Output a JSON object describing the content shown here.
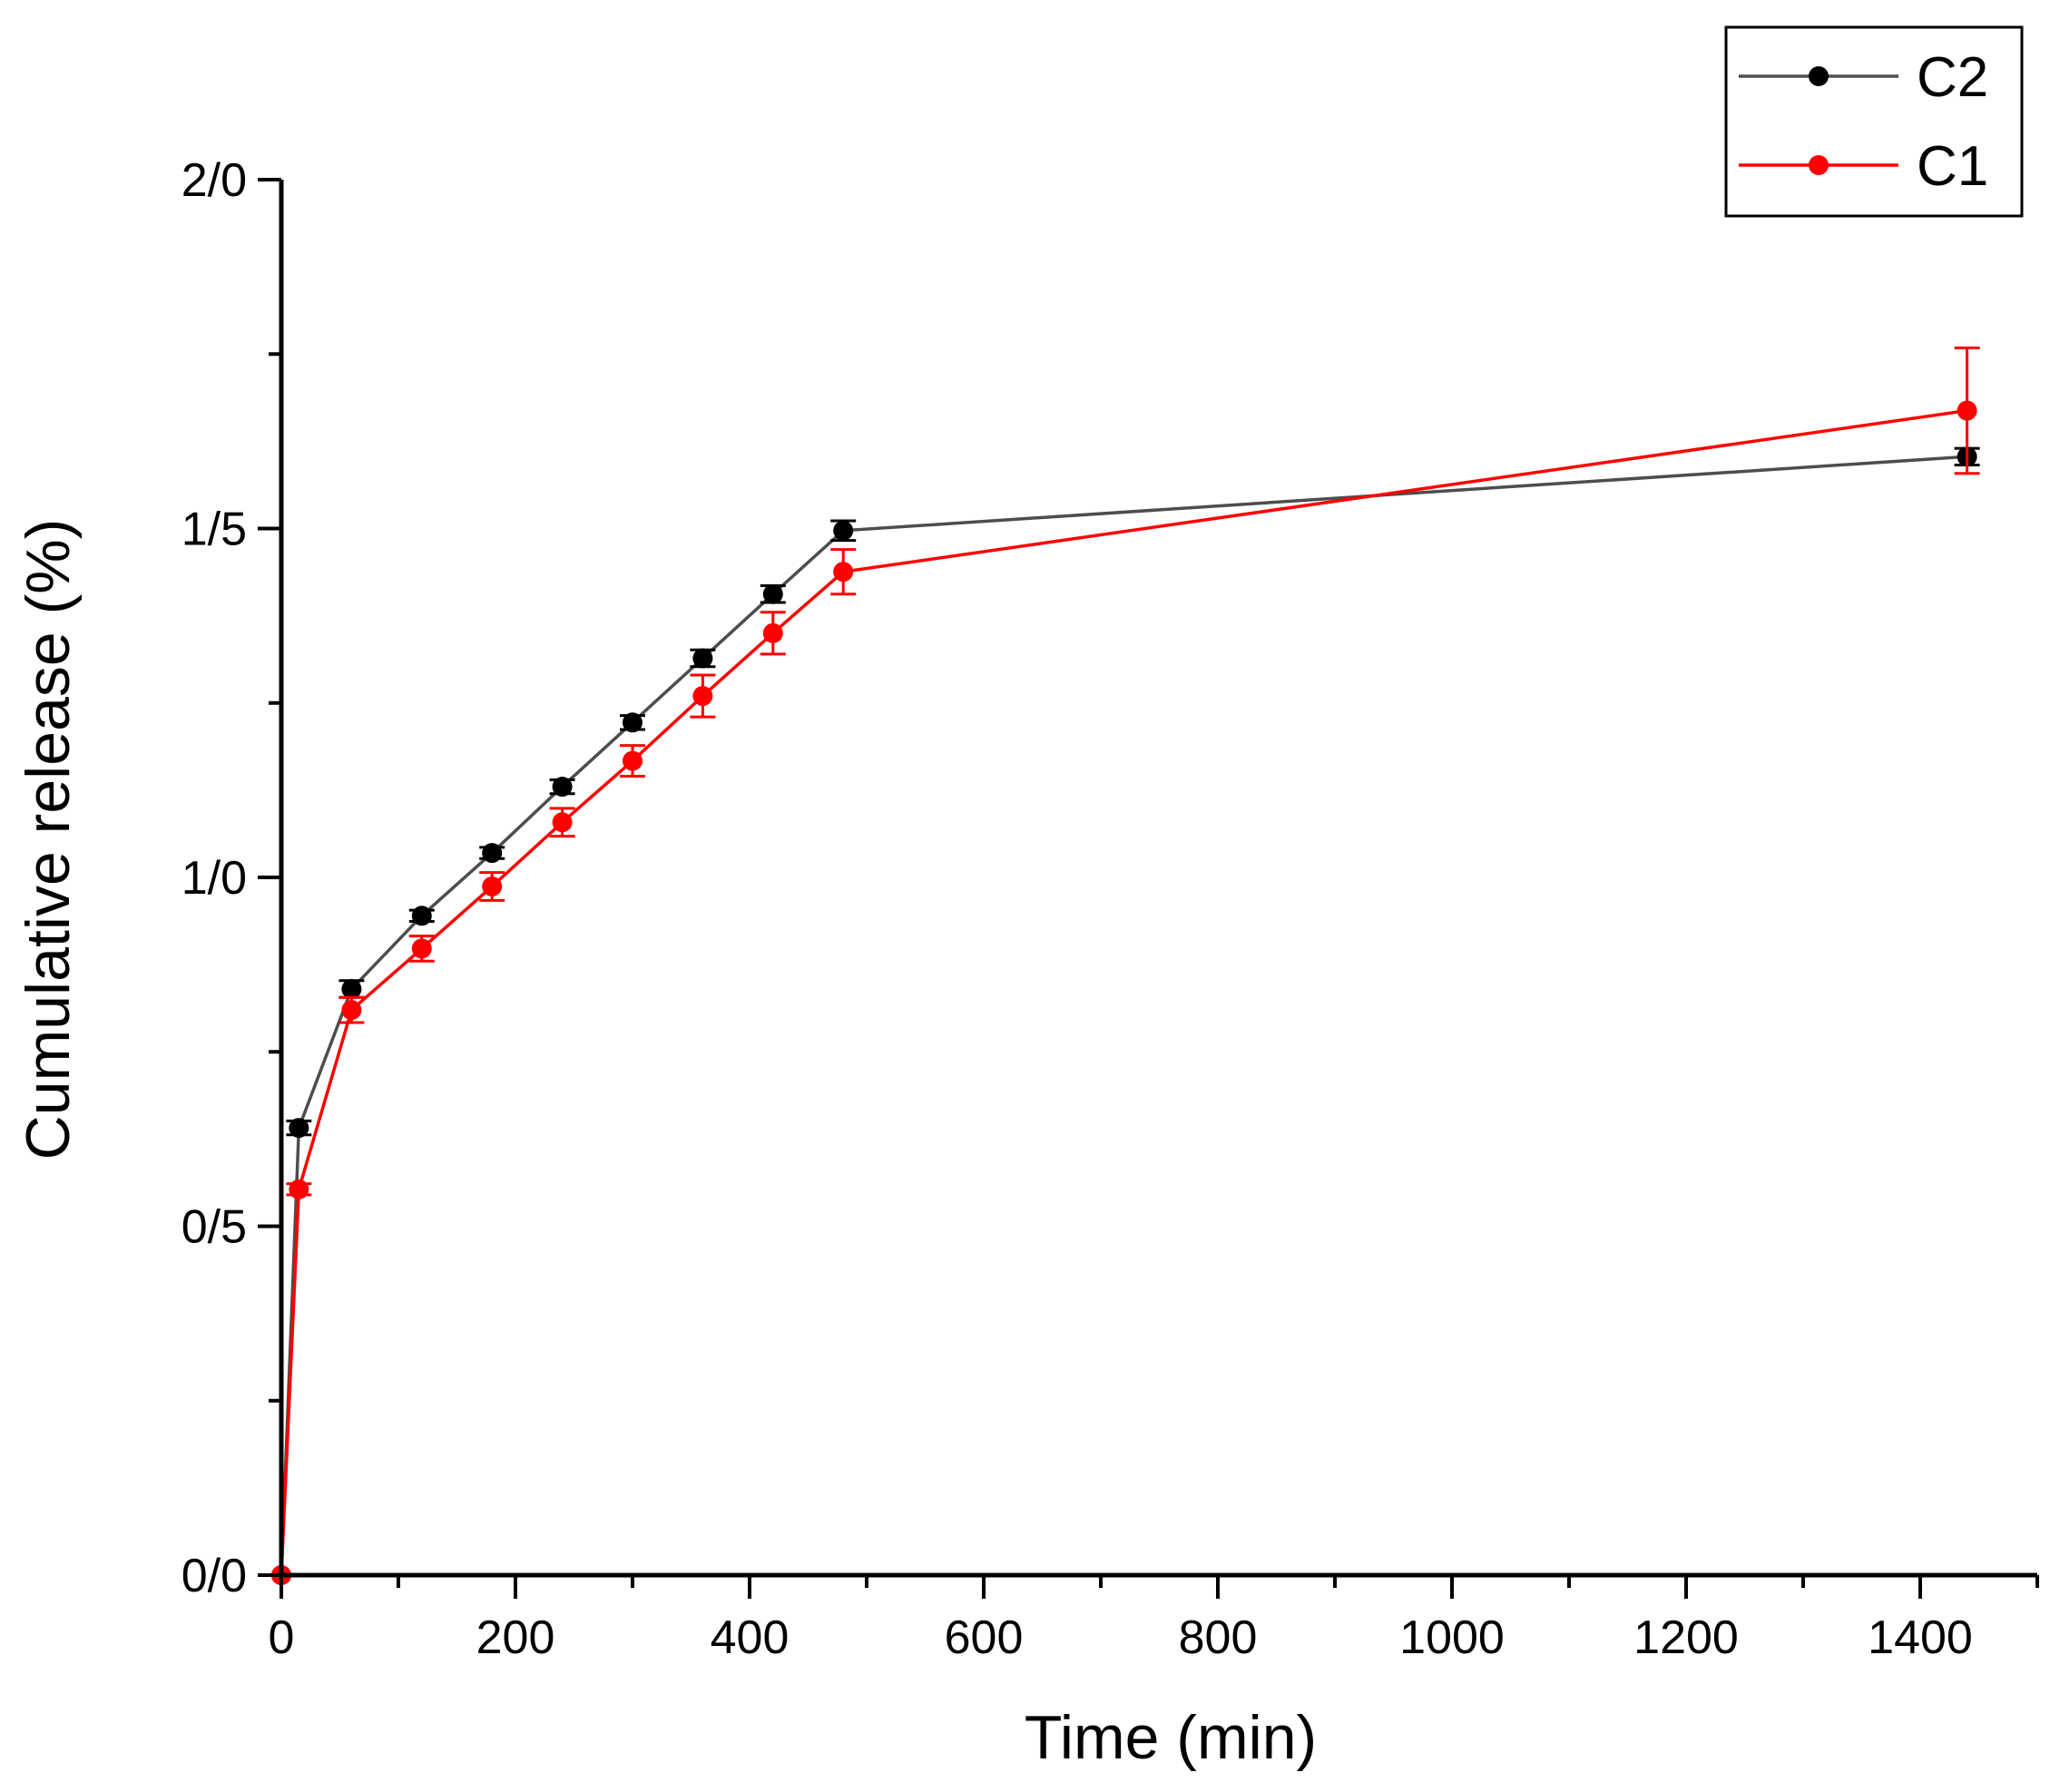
{
  "chart_data": {
    "type": "line",
    "title": "",
    "xlabel": "Time (min)",
    "ylabel": "Cumulative release (%)",
    "xlim": [
      0,
      1500
    ],
    "ylim": [
      0,
      2.0
    ],
    "x_ticks": [
      0,
      200,
      400,
      600,
      800,
      1000,
      1200,
      1400
    ],
    "x_tick_labels": [
      "0",
      "200",
      "400",
      "600",
      "800",
      "1000",
      "1200",
      "1400"
    ],
    "y_ticks": [
      0,
      0.5,
      1.0,
      1.5,
      2.0
    ],
    "y_tick_labels": [
      "0/0",
      "0/5",
      "1/0",
      "1/5",
      "2/0"
    ],
    "grid": false,
    "legend_position": "top-right",
    "series": [
      {
        "name": "C2",
        "color": "#000000",
        "line_color": "#4d4d4d",
        "x": [
          0,
          15,
          60,
          120,
          180,
          240,
          300,
          360,
          420,
          480,
          1440
        ],
        "values": [
          0.0,
          0.641,
          0.84,
          0.945,
          1.035,
          1.13,
          1.222,
          1.314,
          1.406,
          1.497,
          1.603
        ],
        "errors": [
          0.0,
          0.01,
          0.012,
          0.008,
          0.008,
          0.01,
          0.01,
          0.012,
          0.012,
          0.014,
          0.012
        ]
      },
      {
        "name": "C1",
        "color": "#ff0000",
        "line_color": "#ff0000",
        "x": [
          0,
          15,
          60,
          120,
          180,
          240,
          300,
          360,
          420,
          480,
          1440
        ],
        "values": [
          0.0,
          0.553,
          0.81,
          0.898,
          0.987,
          1.079,
          1.167,
          1.26,
          1.35,
          1.438,
          1.669
        ],
        "errors": [
          0.0,
          0.008,
          0.018,
          0.018,
          0.02,
          0.02,
          0.022,
          0.03,
          0.03,
          0.032,
          0.09
        ]
      }
    ]
  }
}
